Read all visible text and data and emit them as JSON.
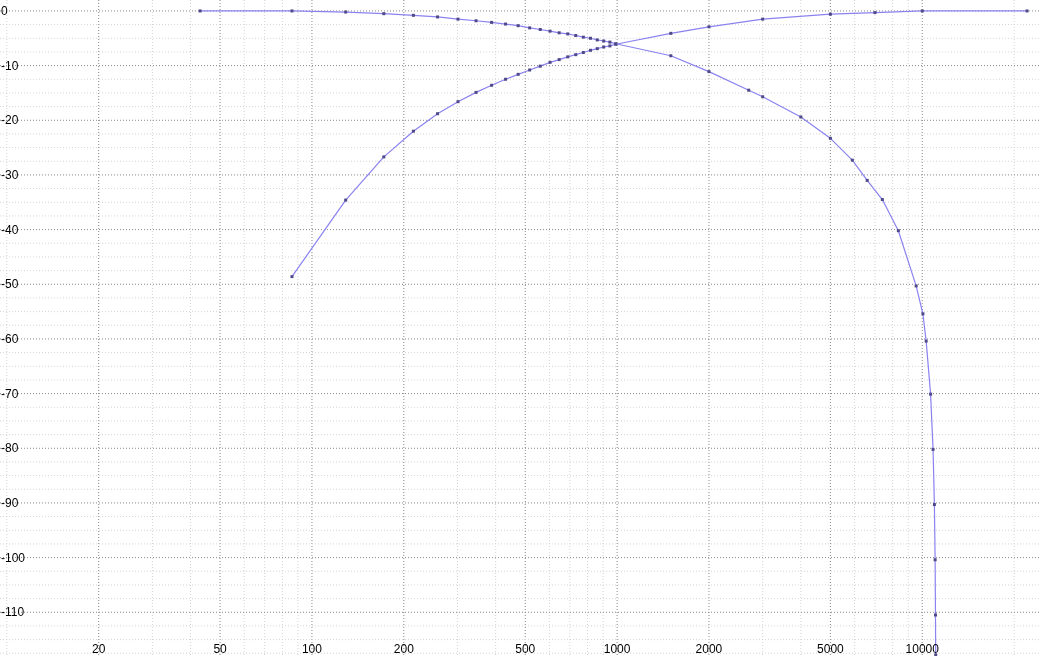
{
  "chart_data": {
    "type": "line",
    "log": "x",
    "grid": true,
    "marker": "square",
    "line_style": "solid",
    "xlim": [
      9.5,
      24500
    ],
    "ylim": [
      -118,
      2
    ],
    "xticks": [
      {
        "value": 10,
        "label": null
      },
      20,
      {
        "value": 30,
        "label": null
      },
      {
        "value": 40,
        "label": null
      },
      50,
      {
        "value": 60,
        "label": null
      },
      {
        "value": 70,
        "label": null
      },
      {
        "value": 80,
        "label": null
      },
      {
        "value": 90,
        "label": null
      },
      100,
      200,
      {
        "value": 300,
        "label": null
      },
      {
        "value": 400,
        "label": null
      },
      500,
      {
        "value": 600,
        "label": null
      },
      {
        "value": 700,
        "label": null
      },
      {
        "value": 800,
        "label": null
      },
      {
        "value": 900,
        "label": null
      },
      1000,
      2000,
      {
        "value": 3000,
        "label": null
      },
      {
        "value": 4000,
        "label": null
      },
      5000,
      {
        "value": 6000,
        "label": null
      },
      {
        "value": 7000,
        "label": null
      },
      {
        "value": 8000,
        "label": null
      },
      {
        "value": 9000,
        "label": null
      },
      10000,
      {
        "value": 20000,
        "label": null
      }
    ],
    "yticks": [
      0,
      {
        "value": -2.5,
        "label": null
      },
      {
        "value": -5,
        "label": null
      },
      {
        "value": -7.5,
        "label": null
      },
      -10,
      {
        "value": -12.5,
        "label": null
      },
      {
        "value": -15,
        "label": null
      },
      {
        "value": -17.5,
        "label": null
      },
      -20,
      {
        "value": -22.5,
        "label": null
      },
      {
        "value": -25,
        "label": null
      },
      {
        "value": -27.5,
        "label": null
      },
      -30,
      {
        "value": -32.5,
        "label": null
      },
      {
        "value": -35,
        "label": null
      },
      {
        "value": -37.5,
        "label": null
      },
      -40,
      {
        "value": -42.5,
        "label": null
      },
      {
        "value": -45,
        "label": null
      },
      {
        "value": -47.5,
        "label": null
      },
      -50,
      {
        "value": -52.5,
        "label": null
      },
      {
        "value": -55,
        "label": null
      },
      {
        "value": -57.5,
        "label": null
      },
      -60,
      {
        "value": -62.5,
        "label": null
      },
      {
        "value": -65,
        "label": null
      },
      {
        "value": -67.5,
        "label": null
      },
      -70,
      {
        "value": -72.5,
        "label": null
      },
      {
        "value": -75,
        "label": null
      },
      {
        "value": -77.5,
        "label": null
      },
      -80,
      {
        "value": -82.5,
        "label": null
      },
      {
        "value": -85,
        "label": null
      },
      {
        "value": -87.5,
        "label": null
      },
      -90,
      {
        "value": -92.5,
        "label": null
      },
      {
        "value": -95,
        "label": null
      },
      {
        "value": -97.5,
        "label": null
      },
      -100,
      {
        "value": -102.5,
        "label": null
      },
      {
        "value": -105,
        "label": null
      },
      {
        "value": -107.5,
        "label": null
      },
      -110,
      {
        "value": -112.5,
        "label": null
      },
      {
        "value": -115,
        "label": null
      },
      {
        "value": -117.5,
        "label": null
      }
    ],
    "series": [
      {
        "color": "#8a82f0",
        "x": [
          43,
          86,
          129,
          172,
          215,
          258,
          301,
          345,
          388,
          431,
          474,
          517,
          560,
          603,
          646,
          689,
          732,
          775,
          818,
          861,
          904,
          947,
          990,
          1500,
          2000,
          2700,
          3000,
          4000,
          5000,
          5900,
          6600,
          7400,
          8350,
          9550,
          10050,
          10300,
          10650,
          10850,
          10960,
          11020,
          11050,
          11070
        ],
        "values": [
          0,
          0,
          -0.2,
          -0.5,
          -0.8,
          -1.1,
          -1.5,
          -1.8,
          -2.1,
          -2.4,
          -2.7,
          -3.1,
          -3.4,
          -3.7,
          -4,
          -4.2,
          -4.5,
          -4.8,
          -5,
          -5.3,
          -5.5,
          -5.7,
          -6,
          -8.2,
          -11.1,
          -14.5,
          -15.7,
          -19.4,
          -23.3,
          -27.3,
          -31,
          -34.5,
          -40.2,
          -50.3,
          -55.4,
          -60.4,
          -70.1,
          -80.2,
          -90.3,
          -100.4,
          -110.5,
          -117.8
        ]
      },
      {
        "color": "#8a82f0",
        "x": [
          86,
          129,
          172,
          215,
          258,
          301,
          345,
          388,
          431,
          474,
          517,
          560,
          603,
          646,
          689,
          732,
          775,
          818,
          861,
          904,
          947,
          990,
          1500,
          2000,
          3000,
          5000,
          7000,
          10000,
          22050
        ],
        "values": [
          -48.6,
          -34.6,
          -26.7,
          -22,
          -18.8,
          -16.6,
          -14.9,
          -13.6,
          -12.5,
          -11.6,
          -10.8,
          -10.1,
          -9.4,
          -8.9,
          -8.4,
          -8,
          -7.6,
          -7.2,
          -6.9,
          -6.6,
          -6.4,
          -6.1,
          -4.1,
          -2.9,
          -1.5,
          -0.6,
          -0.3,
          0,
          0
        ]
      }
    ]
  }
}
